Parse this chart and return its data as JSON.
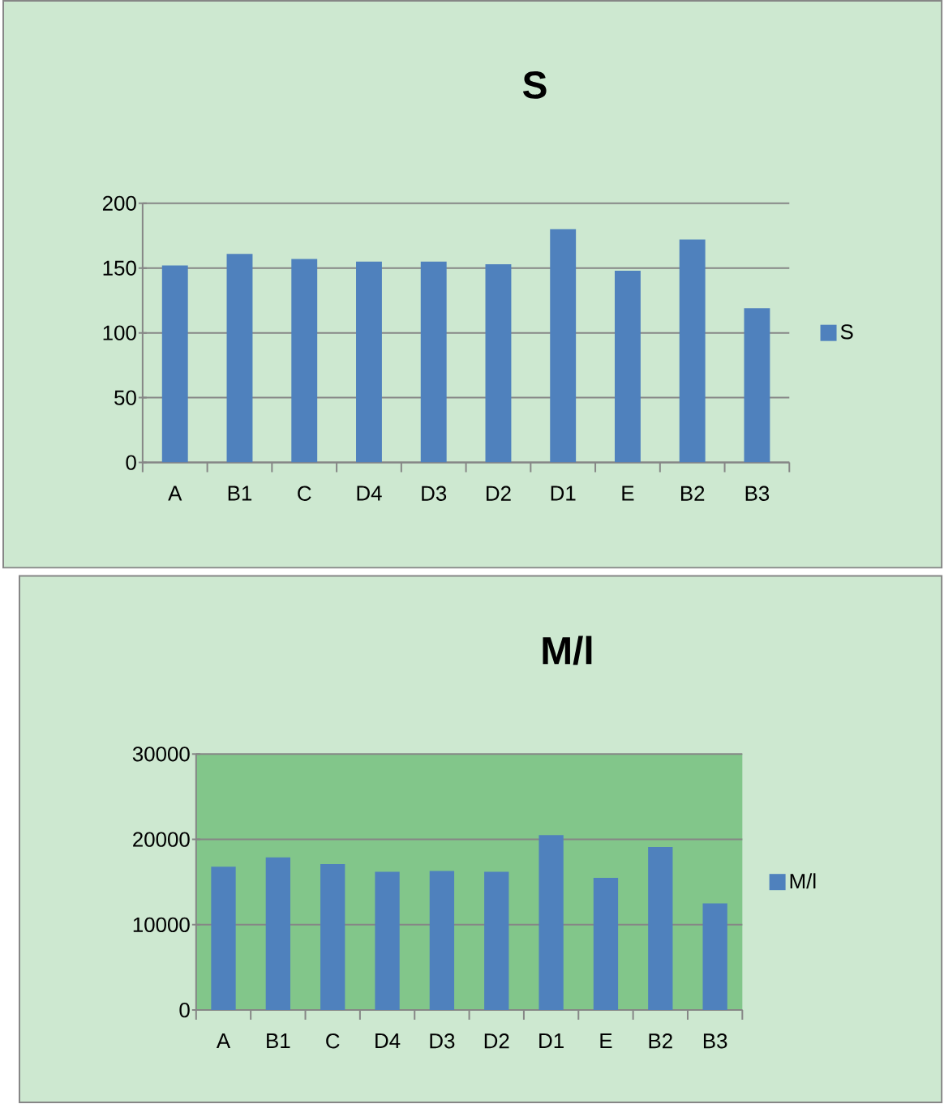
{
  "chart_data": [
    {
      "type": "bar",
      "title": "S",
      "categories": [
        "A",
        "B1",
        "C",
        "D4",
        "D3",
        "D2",
        "D1",
        "E",
        "B2",
        "B3"
      ],
      "series": [
        {
          "name": "S",
          "color": "#4f81bd",
          "values": [
            152,
            161,
            157,
            155,
            155,
            153,
            180,
            148,
            172,
            119
          ]
        }
      ],
      "ylim": [
        0,
        200
      ],
      "yticks": [
        0,
        50,
        100,
        150,
        200
      ],
      "grid": "y",
      "legend": "right"
    },
    {
      "type": "bar",
      "title": "M/l",
      "categories": [
        "A",
        "B1",
        "C",
        "D4",
        "D3",
        "D2",
        "D1",
        "E",
        "B2",
        "B3"
      ],
      "series": [
        {
          "name": "M/l",
          "color": "#4f81bd",
          "values": [
            16800,
            17900,
            17100,
            16200,
            16300,
            16200,
            20500,
            15500,
            19100,
            12500
          ]
        }
      ],
      "ylim": [
        0,
        30000
      ],
      "yticks": [
        0,
        10000,
        20000,
        30000
      ],
      "grid": "y",
      "legend": "right"
    }
  ]
}
